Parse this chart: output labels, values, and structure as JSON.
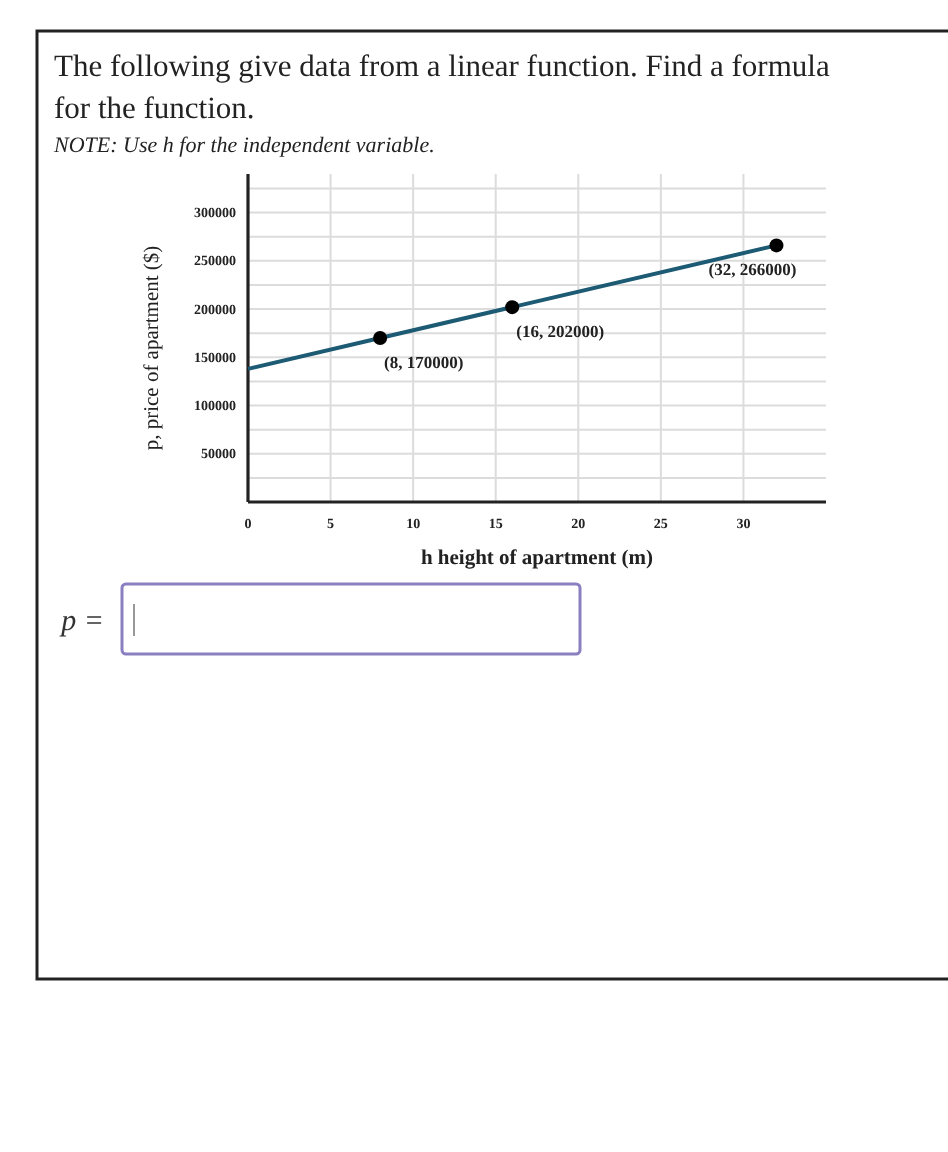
{
  "chart_data": {
    "type": "line",
    "title": "The following give data from a linear function. Find a formula for the function.",
    "subtitle": "NOTE: Use h for the independent variable.",
    "xlabel": "h height of apartment (m)",
    "ylabel": "p, price of apartment ($)",
    "xlim": [
      0,
      35
    ],
    "ylim": [
      0,
      340000
    ],
    "xticks": [
      0,
      5,
      10,
      15,
      20,
      25,
      30
    ],
    "yticks": [
      {
        "value": 25000,
        "label": null
      },
      50000,
      {
        "value": 75000,
        "label": null
      },
      100000,
      {
        "value": 125000,
        "label": null
      },
      150000,
      {
        "value": 175000,
        "label": null
      },
      200000,
      {
        "value": 225000,
        "label": null
      },
      250000,
      {
        "value": 275000,
        "label": null
      },
      300000,
      {
        "value": 325000,
        "label": null
      }
    ],
    "grid": true,
    "series": [
      {
        "color": "#1d5a73",
        "marker": "none",
        "x": [
          0,
          8,
          16,
          32
        ],
        "values": [
          138000,
          170000,
          202000,
          266000
        ]
      },
      {
        "type": "scatter",
        "color": "#000000",
        "marker": "circle",
        "x": [
          8,
          16,
          32
        ],
        "values": [
          170000,
          202000,
          266000
        ]
      }
    ],
    "annotations": [
      {
        "text": "(8, 170000)",
        "x": 8,
        "y": 170000
      },
      {
        "text": "(16, 202000)",
        "x": 16,
        "y": 202000
      },
      {
        "text": "(32, 266000)",
        "x": 32,
        "y": 266000
      },
      "p ="
    ]
  }
}
